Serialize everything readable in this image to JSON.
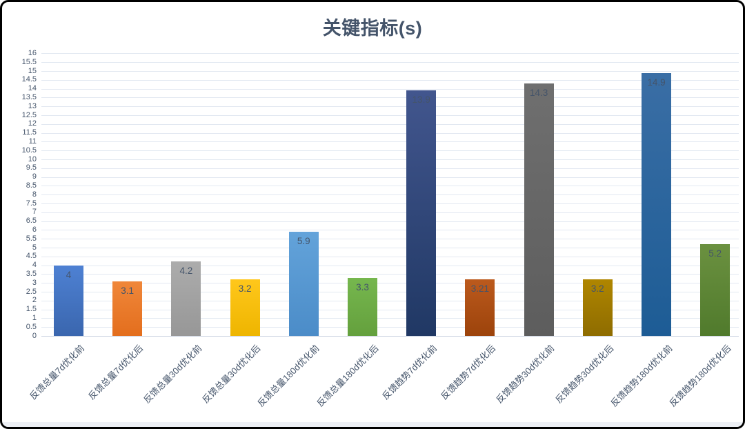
{
  "window": {
    "background": "#ffffff",
    "border_color": "#000000"
  },
  "chart_data": {
    "type": "bar",
    "title": "关键指标(s)",
    "title_color": "#44546A",
    "xlabel": "",
    "ylabel": "",
    "legend": "none",
    "grid": true,
    "ylim": [
      0,
      16
    ],
    "ytick_step": 0.5,
    "yticks": [
      "0",
      "0.5",
      "1",
      "1.5",
      "2",
      "2.5",
      "3",
      "3.5",
      "4",
      "4.5",
      "5",
      "5.5",
      "6",
      "6.5",
      "7",
      "7.5",
      "8",
      "8.5",
      "9",
      "9.5",
      "10",
      "10.5",
      "11",
      "11.5",
      "12",
      "12.5",
      "13",
      "13.5",
      "14",
      "14.5",
      "15",
      "15.5",
      "16"
    ],
    "categories": [
      "反馈总量7d优化前",
      "反馈总量7d优化后",
      "反馈总量30d优化前",
      "反馈总量30d优化后",
      "反馈总量180d优化前",
      "反馈总量180d优化后",
      "反馈趋势7d优化前",
      "反馈趋势7d优化后",
      "反馈趋势30d优化前",
      "反馈趋势30d优化后",
      "反馈趋势180d优化前",
      "反馈趋势180d优化后"
    ],
    "values": [
      4,
      3.1,
      4.2,
      3.2,
      5.9,
      3.3,
      13.9,
      3.21,
      14.3,
      3.2,
      14.9,
      5.2
    ],
    "value_labels": [
      "4",
      "3.1",
      "4.2",
      "3.2",
      "5.9",
      "3.3",
      "13.9",
      "3.21",
      "14.3",
      "3.2",
      "14.9",
      "5.2"
    ],
    "bar_colors": [
      {
        "top": "#4e81d3",
        "bottom": "#3a66ae"
      },
      {
        "top": "#f0873a",
        "bottom": "#e36e1d"
      },
      {
        "top": "#acacac",
        "bottom": "#979797"
      },
      {
        "top": "#ffc71b",
        "bottom": "#eeb500"
      },
      {
        "top": "#63a3da",
        "bottom": "#4b8cc8"
      },
      {
        "top": "#76b74e",
        "bottom": "#64a03d"
      },
      {
        "top": "#42568e",
        "bottom": "#203864"
      },
      {
        "top": "#bc5a1d",
        "bottom": "#9c430b"
      },
      {
        "top": "#6f6f6f",
        "bottom": "#5d5d5d"
      },
      {
        "top": "#b08600",
        "bottom": "#8e6c00"
      },
      {
        "top": "#3a6ea5",
        "bottom": "#1d5c95"
      },
      {
        "top": "#6b9140",
        "bottom": "#507a2c"
      }
    ],
    "value_label_color": "#44546A",
    "axis_label_color": "#44546A",
    "gridline_color": "#e2e8f1",
    "zero_line_color": "#c9d2e0"
  }
}
